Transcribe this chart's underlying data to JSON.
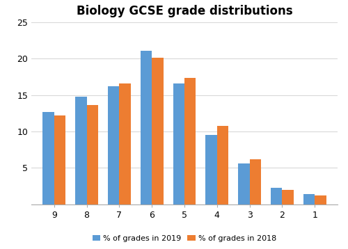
{
  "title": "Biology GCSE grade distributions",
  "grades": [
    "9",
    "8",
    "7",
    "6",
    "5",
    "4",
    "3",
    "2",
    "1"
  ],
  "values_2019": [
    12.7,
    14.8,
    16.2,
    21.1,
    16.6,
    9.5,
    5.6,
    2.3,
    1.4
  ],
  "values_2018": [
    12.2,
    13.6,
    16.6,
    20.1,
    17.4,
    10.8,
    6.2,
    2.0,
    1.2
  ],
  "color_2019": "#5b9bd5",
  "color_2018": "#ed7d31",
  "legend_2019": "% of grades in 2019",
  "legend_2018": "% of grades in 2018",
  "ylim": [
    0,
    25
  ],
  "yticks": [
    0,
    5,
    10,
    15,
    20,
    25
  ],
  "bar_width": 0.35,
  "background_color": "#ffffff",
  "grid_color": "#d9d9d9",
  "title_fontsize": 12,
  "tick_fontsize": 9,
  "legend_fontsize": 8
}
